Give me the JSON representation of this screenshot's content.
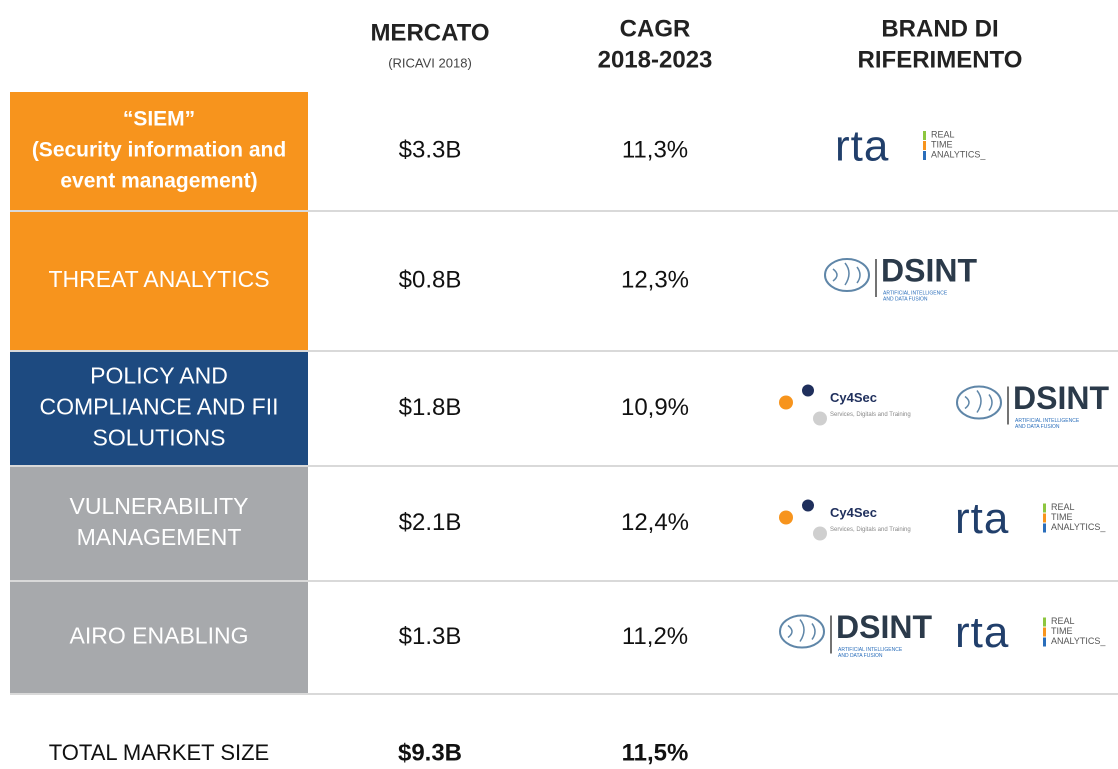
{
  "header": {
    "columns": [
      {
        "title": [
          "MERCATO"
        ],
        "subtitle": "(RICAVI 2018)"
      },
      {
        "title": [
          "CAGR",
          "2018-2023"
        ]
      },
      {
        "title": [
          "BRAND DI",
          "RIFERIMENTO"
        ]
      }
    ]
  },
  "rows": [
    {
      "segment": [
        "“SIEM”",
        "(Security information  and",
        "event management)"
      ],
      "color": "#f7941d",
      "market": "$3.3B",
      "cagr": "11,3%",
      "brands": [
        {
          "kind": "rta",
          "name": "rta",
          "tagline": [
            "REAL",
            "TIME",
            "ANALYTICS_"
          ]
        }
      ]
    },
    {
      "segment": [
        "THREAT ANALYTICS"
      ],
      "color": "#f7941d",
      "market": "$0.8B",
      "cagr": "12,3%",
      "brands": [
        {
          "kind": "dsint",
          "name": "DSINT",
          "tagline": [
            "ARTIFICIAL INTELLIGENCE",
            "AND DATA FUSION"
          ]
        }
      ]
    },
    {
      "segment": [
        "POLICY AND",
        "COMPLIANCE  AND FII",
        "SOLUTIONS"
      ],
      "color": "#1d4a80",
      "market": "$1.8B",
      "cagr": "10,9%",
      "brands": [
        {
          "kind": "cy4sec",
          "name": "Cy4Sec",
          "tagline": [
            "Services, Digitals and Training"
          ]
        },
        {
          "kind": "dsint",
          "name": "DSINT",
          "tagline": [
            "ARTIFICIAL INTELLIGENCE",
            "AND DATA FUSION"
          ]
        }
      ]
    },
    {
      "segment": [
        "VULNERABILITY",
        "MANAGEMENT"
      ],
      "color": "#a7a9ac",
      "market": "$2.1B",
      "cagr": "12,4%",
      "brands": [
        {
          "kind": "cy4sec",
          "name": "Cy4Sec",
          "tagline": [
            "Services, Digitals and Training"
          ]
        },
        {
          "kind": "rta",
          "name": "rta",
          "tagline": [
            "REAL",
            "TIME",
            "ANALYTICS_"
          ]
        }
      ]
    },
    {
      "segment": [
        "AIRO ENABLING"
      ],
      "color": "#a7a9ac",
      "market": "$1.3B",
      "cagr": "11,2%",
      "brands": [
        {
          "kind": "dsint",
          "name": "DSINT",
          "tagline": [
            "ARTIFICIAL INTELLIGENCE",
            "AND DATA FUSION"
          ]
        },
        {
          "kind": "rta",
          "name": "rta",
          "tagline": [
            "REAL",
            "TIME",
            "ANALYTICS_"
          ]
        }
      ]
    }
  ],
  "total": {
    "label": "TOTAL MARKET SIZE",
    "market": "$9.3B",
    "cagr": "11,5%"
  }
}
